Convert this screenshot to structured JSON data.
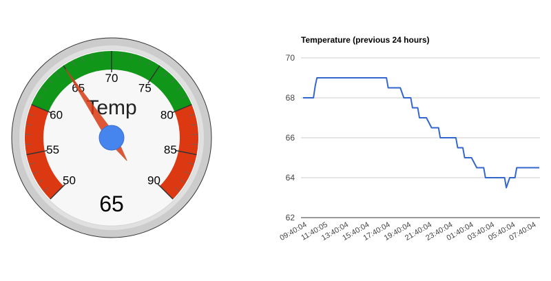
{
  "chart_data": [
    {
      "type": "gauge",
      "label": "Temp",
      "value": 65,
      "value_text": "65",
      "min": 50,
      "max": 90,
      "major_ticks": [
        "50",
        "55",
        "60",
        "65",
        "70",
        "75",
        "80",
        "85",
        "90"
      ],
      "bands": [
        {
          "from": 50,
          "to": 60,
          "color": "#dc3912"
        },
        {
          "from": 60,
          "to": 80,
          "color": "#109618"
        },
        {
          "from": 80,
          "to": 90,
          "color": "#dc3912"
        }
      ],
      "needle_color": "#dc3912",
      "hub_color": "#4684ee"
    },
    {
      "type": "line",
      "title": "Temperature (previous 24 hours)",
      "ylim": [
        62,
        70
      ],
      "y_ticks": [
        "62",
        "64",
        "66",
        "68",
        "70"
      ],
      "x_tick_labels": [
        "09:40:04",
        "11:40:05",
        "13:40:04",
        "15:40:04",
        "17:40:04",
        "19:40:04",
        "21:40:04",
        "23:40:04",
        "01:40:04",
        "03:40:04",
        "05:40:04",
        "07:40:04"
      ],
      "grid": true,
      "line_color": "#3366cc",
      "series": [
        {
          "x": [
            "09:40:04",
            "10:20",
            "10:40",
            "10:50",
            "11:00",
            "11:20",
            "11:40:05",
            "13:40:04",
            "15:40:04",
            "17:40",
            "17:50",
            "18:20",
            "19:00",
            "19:20",
            "19:30",
            "20:00",
            "20:10",
            "20:40",
            "20:50",
            "21:20",
            "21:30",
            "22:00",
            "22:10",
            "22:40",
            "22:50",
            "23:40:04",
            "00:20",
            "00:30",
            "01:00",
            "01:10",
            "01:40:04",
            "01:50",
            "02:20",
            "02:30",
            "03:00",
            "03:10",
            "03:40:04",
            "04:10",
            "04:20",
            "05:00",
            "05:10",
            "05:30",
            "05:40:04",
            "06:00",
            "06:10",
            "06:30",
            "06:40",
            "07:00",
            "07:20",
            "07:40:04",
            "08:20"
          ],
          "values": [
            68.0,
            68.0,
            68.0,
            68.6,
            69.0,
            69.0,
            69.0,
            69.0,
            69.0,
            69.0,
            68.5,
            68.5,
            68.5,
            68.0,
            68.0,
            68.0,
            67.5,
            67.5,
            67.0,
            67.0,
            67.0,
            66.5,
            66.5,
            66.5,
            66.0,
            66.0,
            66.0,
            65.5,
            65.5,
            65.0,
            65.0,
            65.0,
            64.5,
            64.5,
            64.5,
            64.0,
            64.0,
            64.0,
            64.0,
            64.0,
            63.5,
            64.0,
            64.0,
            64.0,
            64.5,
            64.5,
            64.5,
            64.5,
            64.5,
            64.5,
            64.5
          ]
        }
      ]
    }
  ]
}
